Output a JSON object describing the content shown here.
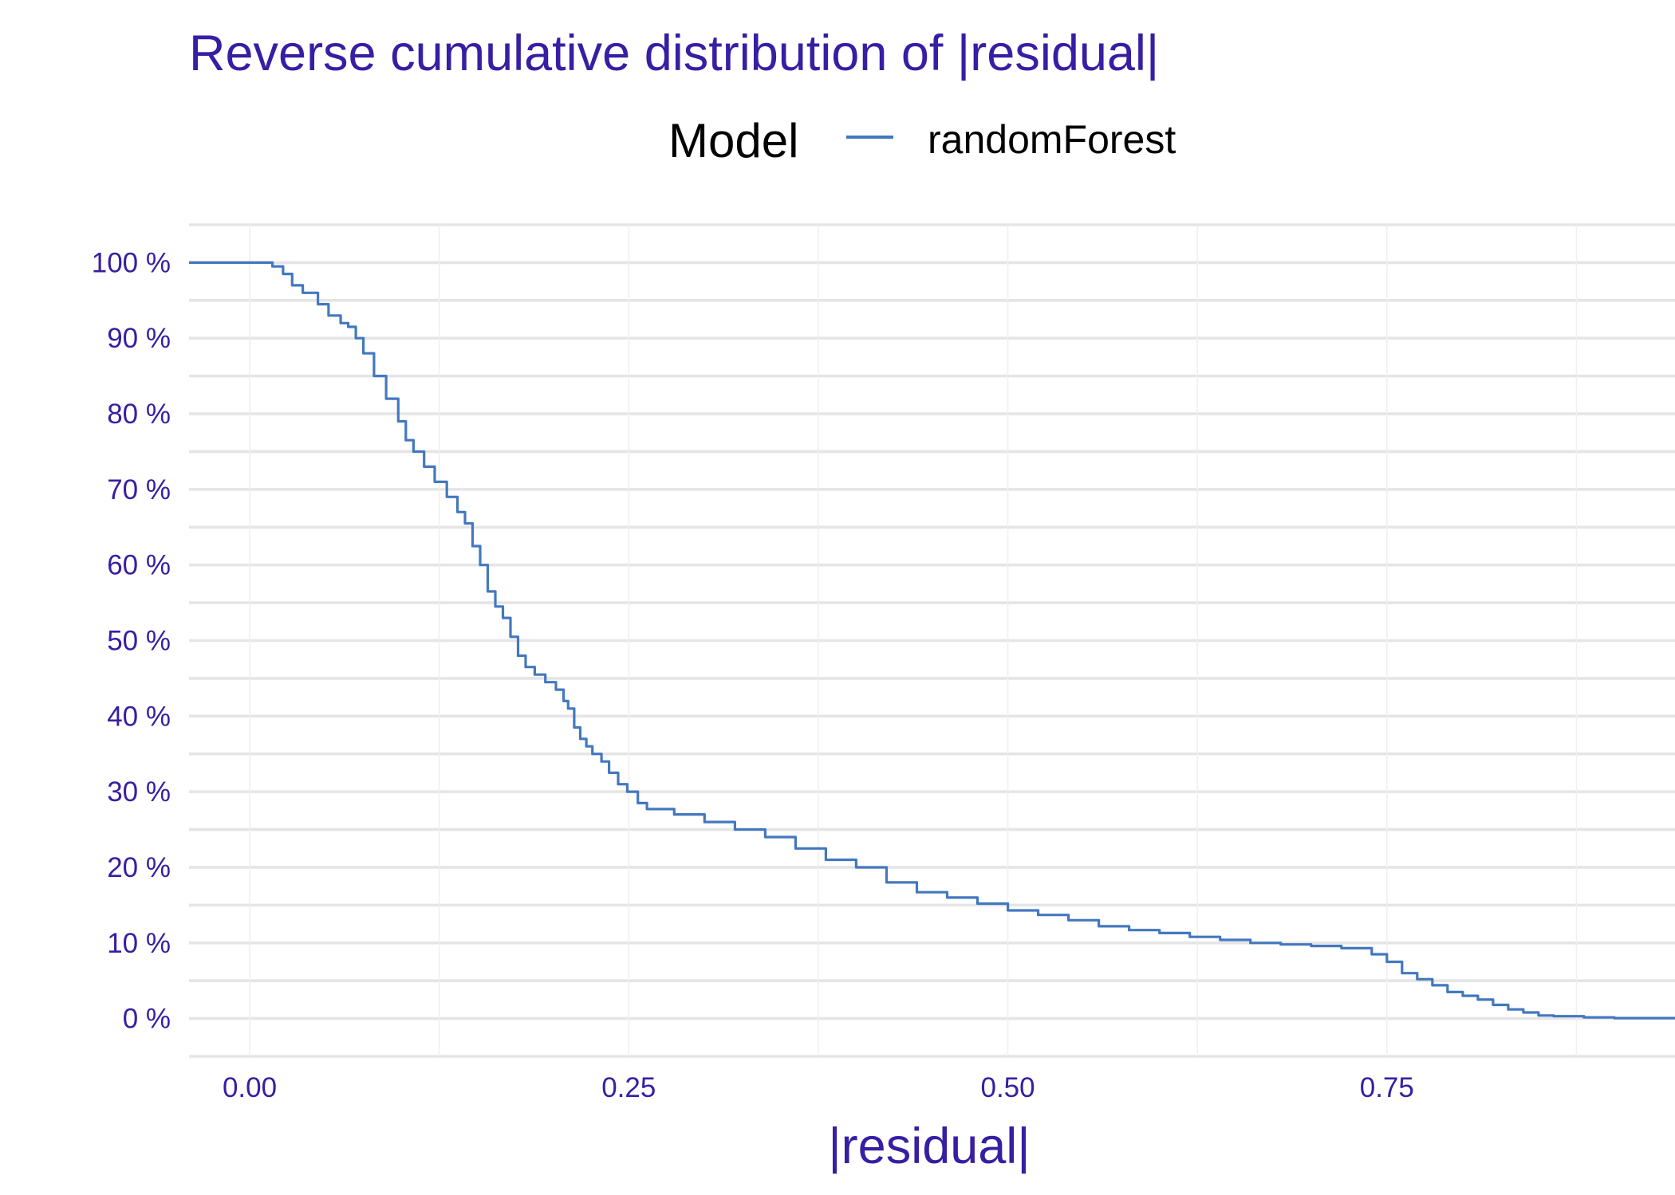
{
  "chart_data": {
    "type": "line",
    "title": "Reverse cumulative distribution of |residual|",
    "xlabel": "|residual|",
    "ylabel": "",
    "xlim": [
      -0.04,
      0.94
    ],
    "ylim": [
      -0.05,
      1.05
    ],
    "x_ticks": [
      0,
      0.25,
      0.5,
      0.75
    ],
    "x_tick_labels": [
      "0.00",
      "0.25",
      "0.50",
      "0.75"
    ],
    "y_ticks": [
      0,
      0.1,
      0.2,
      0.3,
      0.4,
      0.5,
      0.6,
      0.7,
      0.8,
      0.9,
      1.0
    ],
    "y_tick_labels": [
      "0 %",
      "10 %",
      "20 %",
      "30 %",
      "40 %",
      "50 %",
      "60 %",
      "70 %",
      "80 %",
      "90 %",
      "100 %"
    ],
    "grid": true,
    "legend": {
      "title": "Model",
      "position": "top"
    },
    "series": [
      {
        "name": "randomForest",
        "color": "#4378bf",
        "points": [
          [
            -0.04,
            1.0
          ],
          [
            0.0,
            1.0
          ],
          [
            0.008,
            1.0
          ],
          [
            0.015,
            0.995
          ],
          [
            0.022,
            0.985
          ],
          [
            0.028,
            0.97
          ],
          [
            0.035,
            0.96
          ],
          [
            0.045,
            0.945
          ],
          [
            0.052,
            0.93
          ],
          [
            0.06,
            0.92
          ],
          [
            0.065,
            0.915
          ],
          [
            0.07,
            0.9
          ],
          [
            0.075,
            0.88
          ],
          [
            0.082,
            0.85
          ],
          [
            0.09,
            0.82
          ],
          [
            0.098,
            0.79
          ],
          [
            0.103,
            0.765
          ],
          [
            0.108,
            0.75
          ],
          [
            0.115,
            0.73
          ],
          [
            0.122,
            0.71
          ],
          [
            0.13,
            0.69
          ],
          [
            0.137,
            0.67
          ],
          [
            0.142,
            0.655
          ],
          [
            0.147,
            0.625
          ],
          [
            0.152,
            0.6
          ],
          [
            0.157,
            0.565
          ],
          [
            0.162,
            0.545
          ],
          [
            0.167,
            0.53
          ],
          [
            0.172,
            0.505
          ],
          [
            0.177,
            0.48
          ],
          [
            0.182,
            0.465
          ],
          [
            0.188,
            0.455
          ],
          [
            0.195,
            0.445
          ],
          [
            0.202,
            0.435
          ],
          [
            0.207,
            0.42
          ],
          [
            0.21,
            0.41
          ],
          [
            0.214,
            0.385
          ],
          [
            0.218,
            0.37
          ],
          [
            0.222,
            0.36
          ],
          [
            0.226,
            0.35
          ],
          [
            0.232,
            0.34
          ],
          [
            0.237,
            0.325
          ],
          [
            0.243,
            0.31
          ],
          [
            0.249,
            0.3
          ],
          [
            0.256,
            0.285
          ],
          [
            0.262,
            0.277
          ],
          [
            0.28,
            0.27
          ],
          [
            0.3,
            0.26
          ],
          [
            0.32,
            0.25
          ],
          [
            0.34,
            0.24
          ],
          [
            0.36,
            0.225
          ],
          [
            0.38,
            0.21
          ],
          [
            0.4,
            0.2
          ],
          [
            0.42,
            0.18
          ],
          [
            0.44,
            0.167
          ],
          [
            0.46,
            0.16
          ],
          [
            0.48,
            0.152
          ],
          [
            0.5,
            0.143
          ],
          [
            0.52,
            0.137
          ],
          [
            0.54,
            0.13
          ],
          [
            0.56,
            0.122
          ],
          [
            0.58,
            0.117
          ],
          [
            0.6,
            0.113
          ],
          [
            0.62,
            0.108
          ],
          [
            0.64,
            0.104
          ],
          [
            0.66,
            0.1
          ],
          [
            0.68,
            0.098
          ],
          [
            0.7,
            0.096
          ],
          [
            0.72,
            0.093
          ],
          [
            0.74,
            0.085
          ],
          [
            0.75,
            0.075
          ],
          [
            0.76,
            0.06
          ],
          [
            0.77,
            0.052
          ],
          [
            0.78,
            0.044
          ],
          [
            0.79,
            0.035
          ],
          [
            0.8,
            0.03
          ],
          [
            0.81,
            0.025
          ],
          [
            0.82,
            0.018
          ],
          [
            0.83,
            0.012
          ],
          [
            0.84,
            0.008
          ],
          [
            0.85,
            0.004
          ],
          [
            0.86,
            0.003
          ],
          [
            0.88,
            0.0015
          ],
          [
            0.9,
            0.0005
          ],
          [
            0.94,
            0.0
          ]
        ]
      }
    ]
  }
}
